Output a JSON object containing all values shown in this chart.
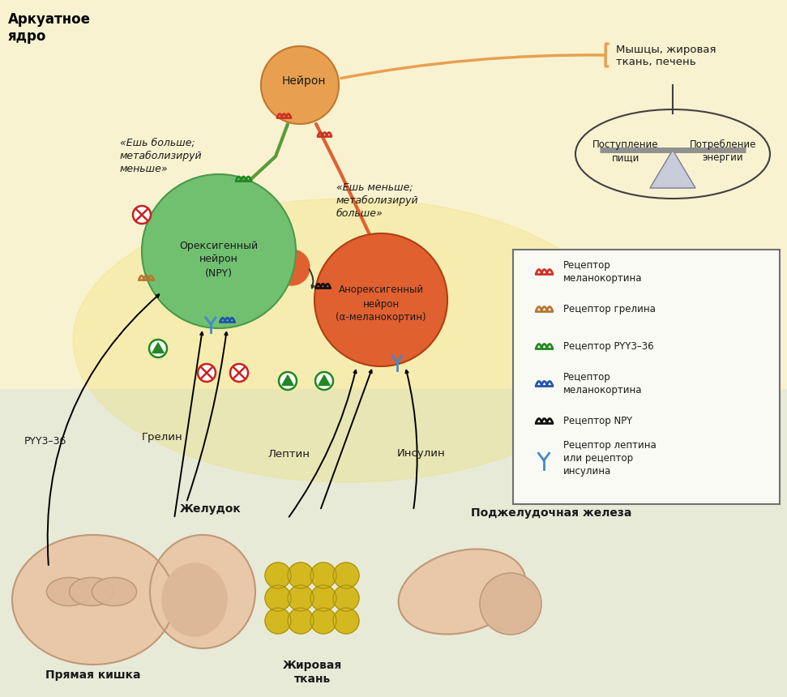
{
  "title_left": "Аркуатное\nядро",
  "orex_neuron_label": "Орексигенный\nнейрон\n(NPY)",
  "anorex_neuron_label": "Анорексигенный\nнейрон\n(α-меланокортин)",
  "neuron_top_label": "Нейрон",
  "muscles_label": "Мышцы, жировая\nткань, печень",
  "eat_more_label": "«Ешь больше;\nметаболизируй\nменьше»",
  "eat_less_label": "«Ешь меньше;\nметаболизируй\nбольше»",
  "balance_left": "Поступление\nпищи",
  "balance_right": "Потребление\nэнергии",
  "ghrelin_label": "Грелин",
  "leptin_label": "Лептин",
  "insulin_label": "Инсулин",
  "pyy_label": "PYY3–36",
  "stomach_label": "Желудок",
  "intestine_label": "Прямая кишка",
  "fat_label": "Жировая\nткань",
  "pancreas_label": "Поджелудочная железа",
  "legend_items": [
    {
      "color": "#cc3322",
      "label": "Рецептор\nмеланокортина",
      "type": "wave"
    },
    {
      "color": "#b87730",
      "label": "Рецептор грелина",
      "type": "wave"
    },
    {
      "color": "#228822",
      "label": "Рецептор PYY3–36",
      "type": "wave"
    },
    {
      "color": "#2255aa",
      "label": "Рецептор\nмеланокортина",
      "type": "wave"
    },
    {
      "color": "#111111",
      "label": "Рецептор NPY",
      "type": "wave"
    },
    {
      "color": "#4488cc",
      "label": "Рецептор лептина\nили рецептор\nинсулина",
      "type": "Y"
    }
  ],
  "orex_color": "#70c070",
  "orex_edge": "#4a9a4a",
  "anorex_color": "#e06030",
  "anorex_edge": "#b04010",
  "top_neuron_color": "#e8a050",
  "top_neuron_edge": "#c07830",
  "axon_green": "#5a9a3a",
  "axon_orange": "#e06030",
  "bg_color": "#f8f4e0"
}
